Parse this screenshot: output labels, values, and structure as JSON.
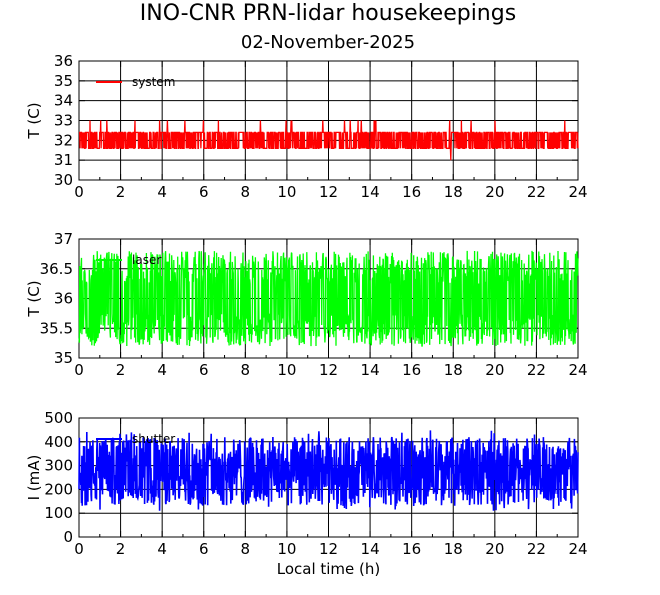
{
  "title": "INO-CNR PRN-lidar housekeepings",
  "subtitle": "02-November-2025",
  "chart_data": [
    {
      "type": "line",
      "ylabel": "T (C)",
      "xlabel": "",
      "xlim": [
        0,
        24
      ],
      "ylim": [
        30,
        36
      ],
      "xticks": [
        "0",
        "2",
        "4",
        "6",
        "8",
        "10",
        "12",
        "14",
        "16",
        "18",
        "20",
        "22",
        "24"
      ],
      "yticks": [
        "30",
        "31",
        "32",
        "33",
        "34",
        "35",
        "36"
      ],
      "grid": true,
      "series": [
        {
          "name": "system",
          "color": "#ff0000",
          "baseline": 32,
          "low": 31.6,
          "high": 32.4,
          "spike_high": 33.0,
          "spike_low": 31.0,
          "values_note": "oscillates between 31.6 and 32.4 with occasional spikes to 33.0"
        }
      ]
    },
    {
      "type": "line",
      "ylabel": "T (C)",
      "xlabel": "",
      "xlim": [
        0,
        24
      ],
      "ylim": [
        35,
        37
      ],
      "xticks": [
        "0",
        "2",
        "4",
        "6",
        "8",
        "10",
        "12",
        "14",
        "16",
        "18",
        "20",
        "22",
        "24"
      ],
      "yticks": [
        "35",
        "35.5",
        "36",
        "36.5",
        "37"
      ],
      "grid": true,
      "series": [
        {
          "name": "laser",
          "color": "#00ff00",
          "baseline": 36.0,
          "low": 35.2,
          "high": 36.8
        }
      ]
    },
    {
      "type": "line",
      "ylabel": "I (mA)",
      "xlabel": "Local time (h)",
      "xlim": [
        0,
        24
      ],
      "ylim": [
        0,
        500
      ],
      "xticks": [
        "0",
        "2",
        "4",
        "6",
        "8",
        "10",
        "12",
        "14",
        "16",
        "18",
        "20",
        "22",
        "24"
      ],
      "yticks": [
        "0",
        "100",
        "200",
        "300",
        "400",
        "500"
      ],
      "grid": true,
      "series": [
        {
          "name": "shutter",
          "color": "#0000ff",
          "baseline": 270,
          "low": 130,
          "high": 420,
          "spike_high": 450,
          "spike_low": 110
        }
      ]
    }
  ]
}
